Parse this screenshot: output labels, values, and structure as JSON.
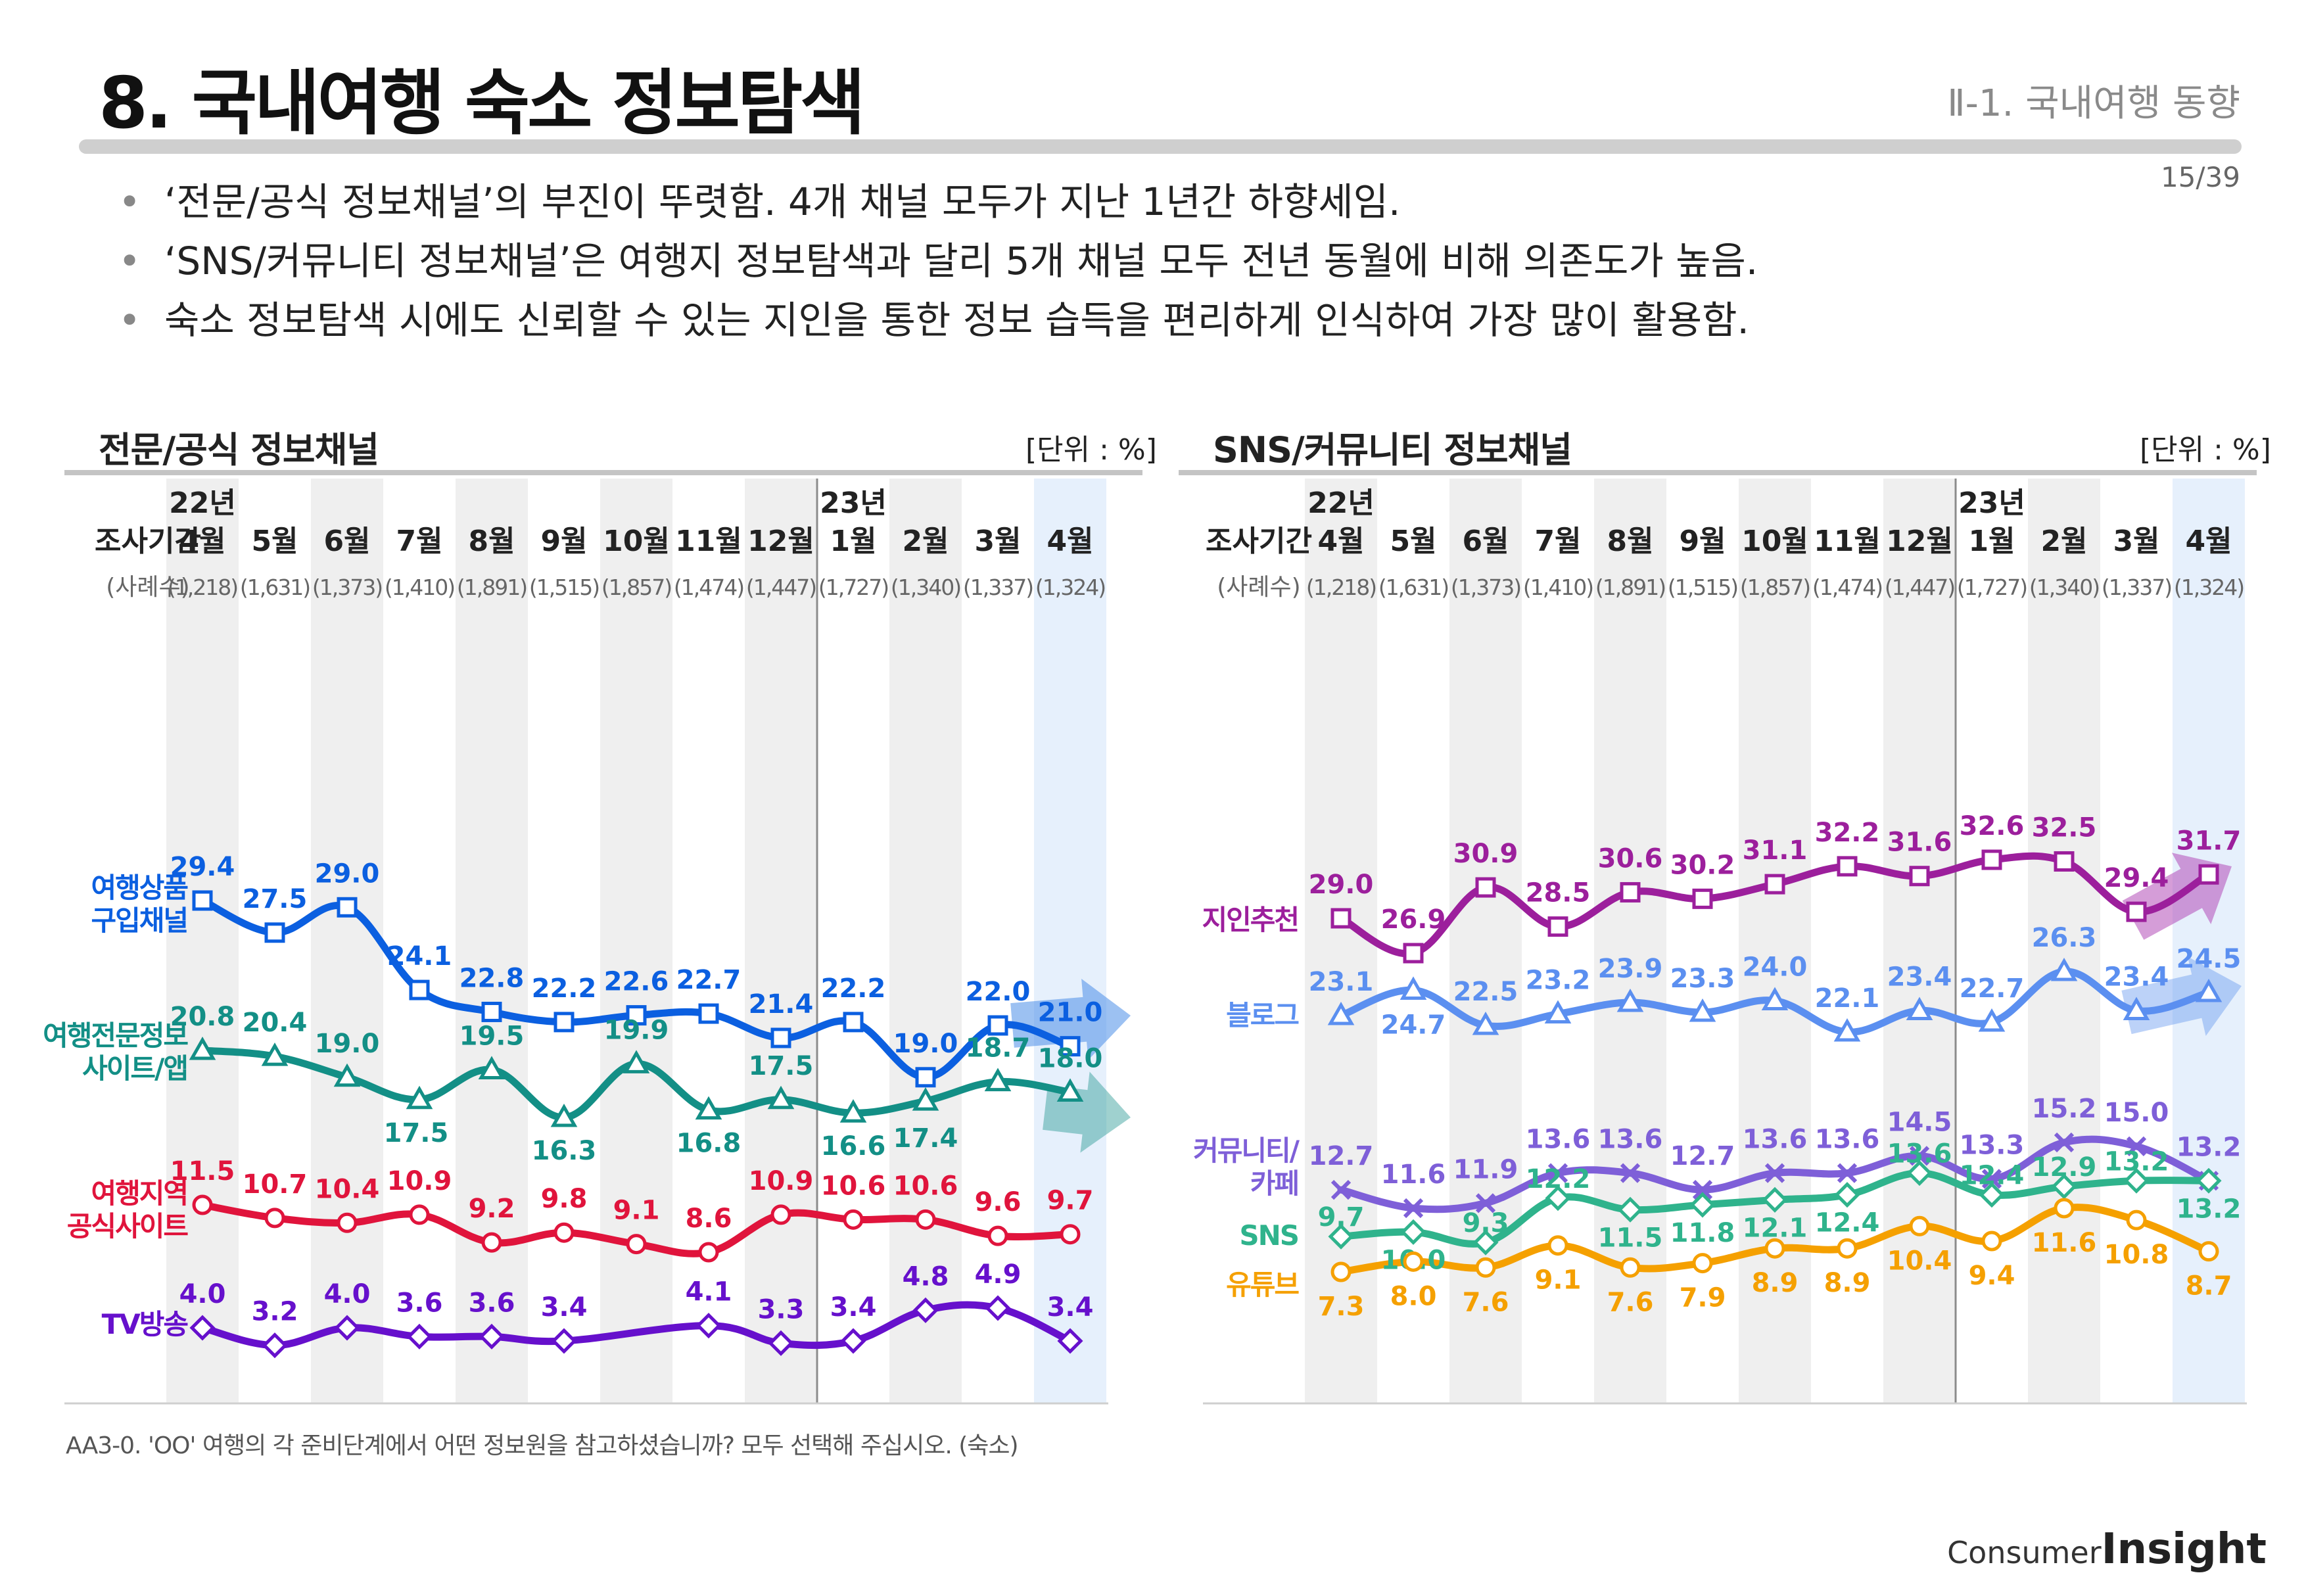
{
  "header": {
    "title": "8. 국내여행 숙소 정보탐색",
    "section": "Ⅱ-1. 국내여행 동향",
    "page": "15/39"
  },
  "bullets": [
    "‘전문/공식 정보채널’의 부진이 뚜렷함. 4개 채널 모두가 지난 1년간 하향세임.",
    "‘SNS/커뮤니티 정보채널’은 여행지 정보탐색과 달리 5개 채널 모두 전년 동월에 비해 의존도가 높음.",
    "숙소 정보탐색 시에도 신뢰할 수 있는 지인을 통한 정보 습득을 편리하게 인식하여 가장 많이 활용함."
  ],
  "table_header": {
    "period_label": "조사기간",
    "sample_label": "(사례수)",
    "year_labels": {
      "0": "22년",
      "9": "23년"
    },
    "months": [
      "4월",
      "5월",
      "6월",
      "7월",
      "8월",
      "9월",
      "10월",
      "11월",
      "12월",
      "1월",
      "2월",
      "3월",
      "4월"
    ],
    "samples": [
      "(1,218)",
      "(1,631)",
      "(1,373)",
      "(1,410)",
      "(1,891)",
      "(1,515)",
      "(1,857)",
      "(1,474)",
      "(1,447)",
      "(1,727)",
      "(1,340)",
      "(1,337)",
      "(1,324)"
    ]
  },
  "footnote": "AA3-0. 'OO' 여행의 각 준비단계에서 어떤 정보원을 참고하셨습니까? 모두 선택해 주십시오. (숙소)",
  "logo": {
    "prefix": "Consumer",
    "main": "Insight"
  },
  "chart_data": [
    {
      "type": "line",
      "title": "전문/공식 정보채널",
      "unit": "[단위 : %]",
      "categories": [
        "22년 4월",
        "5월",
        "6월",
        "7월",
        "8월",
        "9월",
        "10월",
        "11월",
        "12월",
        "23년 1월",
        "2월",
        "3월",
        "4월"
      ],
      "series": [
        {
          "name": "여행상품\n구입채널",
          "color": "#0b5fe0",
          "marker": "square",
          "values": [
            29.4,
            27.5,
            29.0,
            24.1,
            22.8,
            22.2,
            22.6,
            22.7,
            21.4,
            22.2,
            19.0,
            22.0,
            21.0
          ]
        },
        {
          "name": "여행전문정보\n사이트/앱",
          "color": "#138f86",
          "marker": "triangle",
          "values": [
            20.8,
            20.4,
            19.0,
            17.5,
            19.5,
            16.3,
            19.9,
            16.8,
            17.5,
            16.6,
            17.4,
            18.7,
            18.0
          ]
        },
        {
          "name": "여행지역\n공식사이트",
          "color": "#e0143c",
          "marker": "circle",
          "values": [
            11.5,
            10.7,
            10.4,
            10.9,
            9.2,
            9.8,
            9.1,
            8.6,
            10.9,
            10.6,
            10.6,
            9.6,
            9.7
          ]
        },
        {
          "name": "TV방송",
          "color": "#6610cc",
          "marker": "diamond",
          "values": [
            4.0,
            3.2,
            4.0,
            3.6,
            3.6,
            3.4,
            null,
            4.1,
            3.3,
            3.4,
            4.8,
            4.9,
            3.4
          ]
        }
      ]
    },
    {
      "type": "line",
      "title": "SNS/커뮤니티 정보채널",
      "unit": "[단위 : %]",
      "categories": [
        "22년 4월",
        "5월",
        "6월",
        "7월",
        "8월",
        "9월",
        "10월",
        "11월",
        "12월",
        "23년 1월",
        "2월",
        "3월",
        "4월"
      ],
      "series": [
        {
          "name": "지인추천",
          "color": "#9c1f9c",
          "marker": "square",
          "values": [
            29.0,
            26.9,
            30.9,
            28.5,
            30.6,
            30.2,
            31.1,
            32.2,
            31.6,
            32.6,
            32.5,
            29.4,
            31.7
          ]
        },
        {
          "name": "블로그",
          "color": "#5b8ff0",
          "marker": "triangle",
          "values": [
            23.1,
            24.7,
            22.5,
            23.2,
            23.9,
            23.3,
            24.0,
            22.1,
            23.4,
            22.7,
            26.3,
            23.4,
            24.5
          ]
        },
        {
          "name": "커뮤니티/\n카페",
          "color": "#7e5fd8",
          "marker": "x",
          "values": [
            12.7,
            11.6,
            11.9,
            13.6,
            13.6,
            12.7,
            13.6,
            13.6,
            14.5,
            13.3,
            15.2,
            15.0,
            13.2
          ]
        },
        {
          "name": "SNS",
          "color": "#2fb38c",
          "marker": "diamond",
          "values": [
            9.7,
            10.0,
            9.3,
            12.2,
            11.5,
            11.8,
            12.1,
            12.4,
            13.6,
            12.4,
            12.9,
            13.2,
            13.2
          ]
        },
        {
          "name": "유튜브",
          "color": "#f5a000",
          "marker": "circle",
          "values": [
            7.3,
            8.0,
            7.6,
            9.1,
            7.6,
            7.9,
            8.9,
            8.9,
            10.4,
            9.4,
            11.6,
            10.8,
            8.7
          ]
        }
      ]
    }
  ]
}
